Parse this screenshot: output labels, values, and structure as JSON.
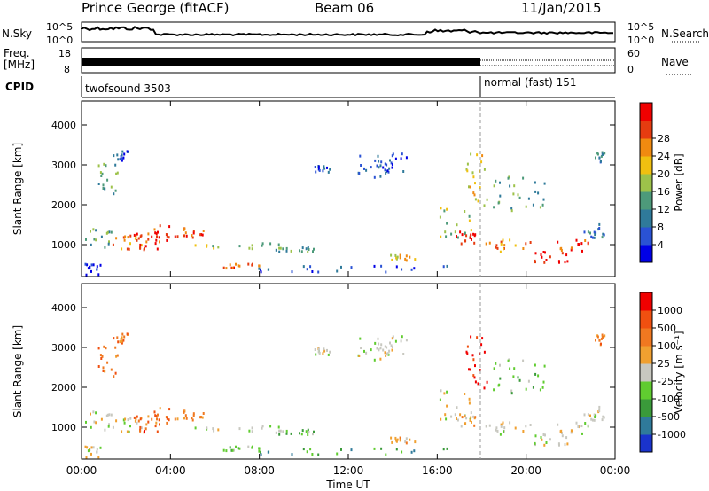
{
  "header": {
    "title": "Prince George (fitACF)",
    "beam": "Beam 06",
    "date": "11/Jan/2015"
  },
  "top_strip": {
    "left_label": "N.Sky",
    "right_label": "N.Search",
    "left_ticks": [
      "10^5",
      "10^0"
    ],
    "right_ticks": [
      "10^5",
      "10^0"
    ]
  },
  "freq_strip": {
    "left_label_top": "Freq.",
    "left_label_unit": "[MHz]",
    "left_ticks": [
      "18",
      "8"
    ],
    "right_label": "Nave",
    "right_ticks": [
      "60",
      "0"
    ]
  },
  "cpid_strip": {
    "label": "CPID",
    "modes": [
      {
        "name": "twofsound 3503"
      },
      {
        "name": "normal (fast) 151"
      }
    ]
  },
  "colors": {
    "power": [
      "#0000e6",
      "#2a52d4",
      "#2f7a9a",
      "#4d9a7a",
      "#9dc24a",
      "#f0c010",
      "#f08a10",
      "#e63c10",
      "#f00000"
    ],
    "velocity": [
      "#1a33cc",
      "#2f7a9a",
      "#3a9a3a",
      "#60cc30",
      "#c8c8c0",
      "#f0a030",
      "#f07820",
      "#f05010",
      "#f00000"
    ]
  },
  "chart_data": [
    {
      "type": "heatmap",
      "quantity": "Power",
      "ylabel": "Slant Range [km]",
      "y_ticks": [
        1000,
        2000,
        3000,
        4000
      ],
      "ylim": [
        200,
        4600
      ],
      "x_ticks": [
        "00:00",
        "04:00",
        "08:00",
        "12:00",
        "16:00",
        "20:00",
        "00:00"
      ],
      "colorbar": {
        "label": "Power [dB]",
        "ticks": [
          4,
          8,
          12,
          16,
          20,
          24,
          28
        ]
      }
    },
    {
      "type": "heatmap",
      "quantity": "Velocity",
      "ylabel": "Slant Range [km]",
      "y_ticks": [
        1000,
        2000,
        3000,
        4000
      ],
      "ylim": [
        200,
        4600
      ],
      "x_ticks": [
        "00:00",
        "04:00",
        "08:00",
        "12:00",
        "16:00",
        "20:00",
        "00:00"
      ],
      "xlabel": "Time UT",
      "colorbar": {
        "label": "Velocity [m s⁻¹]",
        "ticks": [
          "1000",
          "500",
          "100",
          "25",
          "-25",
          "-100",
          "-500",
          "-1000"
        ]
      }
    }
  ]
}
